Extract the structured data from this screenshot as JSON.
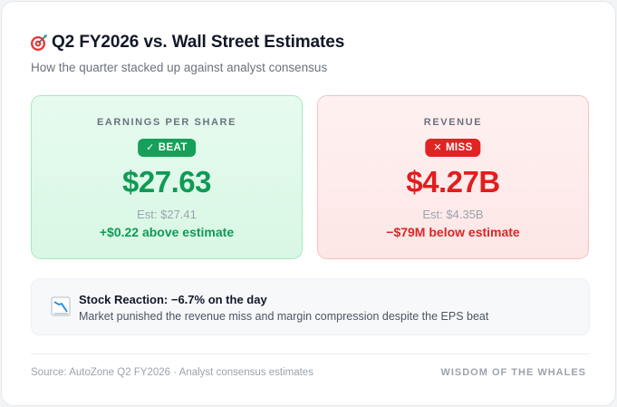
{
  "header": {
    "icon": "target-dart-icon",
    "title": "Q2 FY2026 vs. Wall Street Estimates",
    "subtitle": "How the quarter stacked up against analyst consensus"
  },
  "eps": {
    "label": "EARNINGS PER SHARE",
    "badge": "BEAT",
    "badge_icon": "✓",
    "value": "$27.63",
    "estimate": "Est: $27.41",
    "difference": "+$0.22 above estimate",
    "accent": "#0f9a55"
  },
  "revenue": {
    "label": "REVENUE",
    "badge": "MISS",
    "badge_icon": "✕",
    "value": "$4.27B",
    "estimate": "Est: $4.35B",
    "difference": "−$79M below estimate",
    "accent": "#e11d1d"
  },
  "reaction": {
    "icon": "chart-decreasing-icon",
    "title": "Stock Reaction: −6.7% on the day",
    "body": "Market punished the revenue miss and margin compression despite the EPS beat"
  },
  "footer": {
    "source": "Source: AutoZone Q2 FY2026 · Analyst consensus estimates",
    "brand": "WISDOM OF THE WHALES"
  }
}
